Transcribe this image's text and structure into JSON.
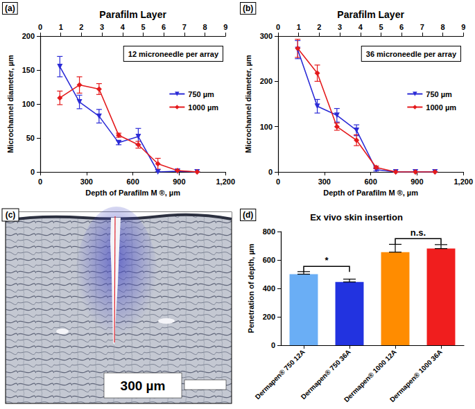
{
  "chart_data": [
    {
      "type": "line",
      "panel_label": "(a)",
      "annotation": "12 microneedle per array",
      "x2label": "Parafilm Layer",
      "xlabel": "Depth of Parafilm M ®, µm",
      "ylabel": "Microchannel diameter, µm",
      "x": [
        127,
        254,
        381,
        508,
        635,
        762,
        889,
        1016
      ],
      "xlim": [
        0,
        1200
      ],
      "xticks": [
        0,
        300,
        600,
        900,
        1200
      ],
      "x2lim": [
        0,
        9
      ],
      "x2ticks": [
        0,
        1,
        2,
        3,
        4,
        5,
        6,
        7,
        8,
        9
      ],
      "ylim": [
        0,
        200
      ],
      "yticks": [
        0,
        50,
        100,
        150,
        200
      ],
      "grid": false,
      "legend": "right",
      "series": [
        {
          "name": "750 µm",
          "color": "#2b2bd6",
          "marker": "triangle-down",
          "values": [
            155,
            103,
            82,
            43,
            52,
            0,
            1,
            0
          ],
          "errors": [
            15,
            10,
            10,
            3,
            12,
            0,
            0,
            0
          ]
        },
        {
          "name": "1000 µm",
          "color": "#e41a1c",
          "marker": "diamond",
          "values": [
            109,
            128,
            122,
            54,
            40,
            12,
            2,
            0
          ],
          "errors": [
            10,
            12,
            8,
            3,
            5,
            8,
            0,
            0
          ]
        }
      ]
    },
    {
      "type": "line",
      "panel_label": "(b)",
      "annotation": "36 microneedle per array",
      "x2label": "Parafilm Layer",
      "xlabel": "Depth of Parafilm M ®, µm",
      "ylabel": "Microchannel diameter, µm",
      "x": [
        127,
        254,
        381,
        508,
        635,
        762,
        889,
        1016
      ],
      "xlim": [
        0,
        1200
      ],
      "xticks": [
        0,
        300,
        600,
        900,
        1200
      ],
      "x2lim": [
        0,
        9
      ],
      "x2ticks": [
        0,
        1,
        2,
        3,
        4,
        5,
        6,
        7,
        8,
        9
      ],
      "ylim": [
        0,
        300
      ],
      "yticks": [
        0,
        100,
        200,
        300
      ],
      "grid": false,
      "legend": "right",
      "series": [
        {
          "name": "750 µm",
          "color": "#2b2bd6",
          "marker": "triangle-down",
          "values": [
            270,
            145,
            125,
            92,
            5,
            0,
            0,
            0
          ],
          "errors": [
            20,
            15,
            15,
            12,
            3,
            0,
            0,
            0
          ]
        },
        {
          "name": "1000 µm",
          "color": "#e41a1c",
          "marker": "diamond",
          "values": [
            273,
            218,
            100,
            70,
            10,
            0,
            0,
            0
          ],
          "errors": [
            20,
            18,
            8,
            12,
            3,
            0,
            0,
            0
          ]
        }
      ]
    },
    {
      "type": "bar",
      "panel_label": "(d)",
      "title": "Ex vivo skin insertion",
      "ylabel": "Penetration of depth, µm",
      "categories": [
        "Dermapen® 750 12A",
        "Dermapen® 750 36A",
        "Dermapen® 1000 12A",
        "Dermapen® 1000 36A"
      ],
      "values": [
        500,
        445,
        655,
        680
      ],
      "errors": [
        18,
        20,
        55,
        28
      ],
      "colors": [
        "#6aaef5",
        "#2233e0",
        "#ff8c00",
        "#f01e1e"
      ],
      "ylim": [
        0,
        800
      ],
      "yticks": [
        0,
        200,
        400,
        600,
        800
      ],
      "grid": false,
      "significance": [
        {
          "between": [
            "Dermapen® 750 12A",
            "Dermapen® 750 36A"
          ],
          "y": 555,
          "label": "*"
        },
        {
          "between": [
            "Dermapen® 1000 12A",
            "Dermapen® 1000 36A"
          ],
          "y": 750,
          "label": "n.s."
        }
      ]
    }
  ],
  "figure_panel": {
    "panel_label": "(c)",
    "scale_bar": "300 µm"
  }
}
